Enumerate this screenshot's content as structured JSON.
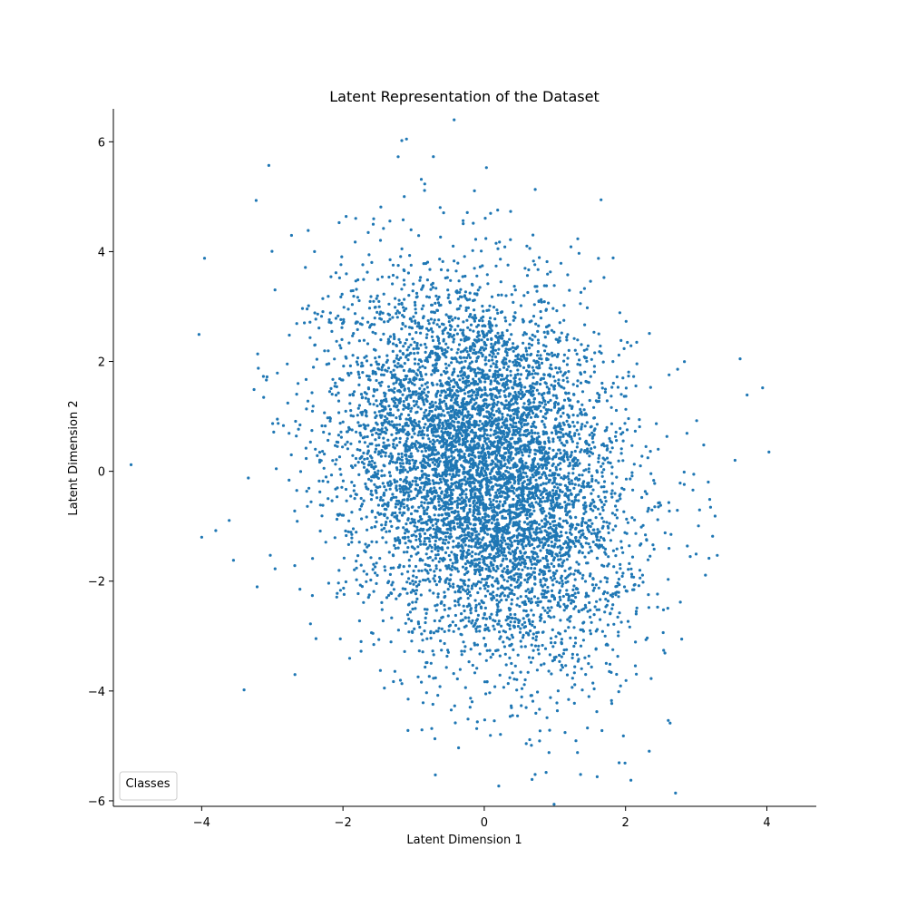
{
  "chart_data": {
    "type": "scatter",
    "title": "Latent Representation of the Dataset",
    "xlabel": "Latent Dimension 1",
    "ylabel": "Latent Dimension 2",
    "xlim": [
      -5.25,
      4.7
    ],
    "ylim": [
      -6.1,
      6.6
    ],
    "x_ticks": [
      -4,
      -2,
      0,
      2,
      4
    ],
    "y_ticks": [
      -6,
      -4,
      -2,
      0,
      2,
      4,
      6
    ],
    "x_tick_labels": [
      "−4",
      "−2",
      "0",
      "2",
      "4"
    ],
    "y_tick_labels": [
      "−6",
      "−4",
      "−2",
      "0",
      "2",
      "4",
      "6"
    ],
    "grid": false,
    "marker_color": "#1f77b4",
    "legend": {
      "title": "Classes",
      "placement": "lower-left",
      "entries": []
    },
    "series": [
      {
        "points_shown": 7000,
        "distribution": {
          "mean": [
            0.0,
            0.0
          ],
          "std": [
            1.0,
            1.7
          ],
          "correlation": -0.25
        },
        "sample_points": [
          [
            -5.0,
            0.12
          ],
          [
            4.03,
            0.35
          ],
          [
            -1.1,
            6.05
          ],
          [
            0.03,
            5.53
          ],
          [
            0.72,
            -5.52
          ],
          [
            1.32,
            -5.12
          ],
          [
            -3.05,
            5.57
          ],
          [
            -0.72,
            5.73
          ],
          [
            -3.96,
            3.88
          ],
          [
            -3.4,
            -3.98
          ],
          [
            3.94,
            1.52
          ],
          [
            3.72,
            1.39
          ],
          [
            -4.0,
            -1.2
          ],
          [
            -3.8,
            -1.08
          ],
          [
            -2.68,
            -3.7
          ],
          [
            -1.08,
            -4.72
          ],
          [
            -0.41,
            -4.58
          ],
          [
            0.23,
            -4.79
          ],
          [
            -3.55,
            -1.62
          ],
          [
            3.55,
            0.2
          ]
        ]
      }
    ]
  }
}
